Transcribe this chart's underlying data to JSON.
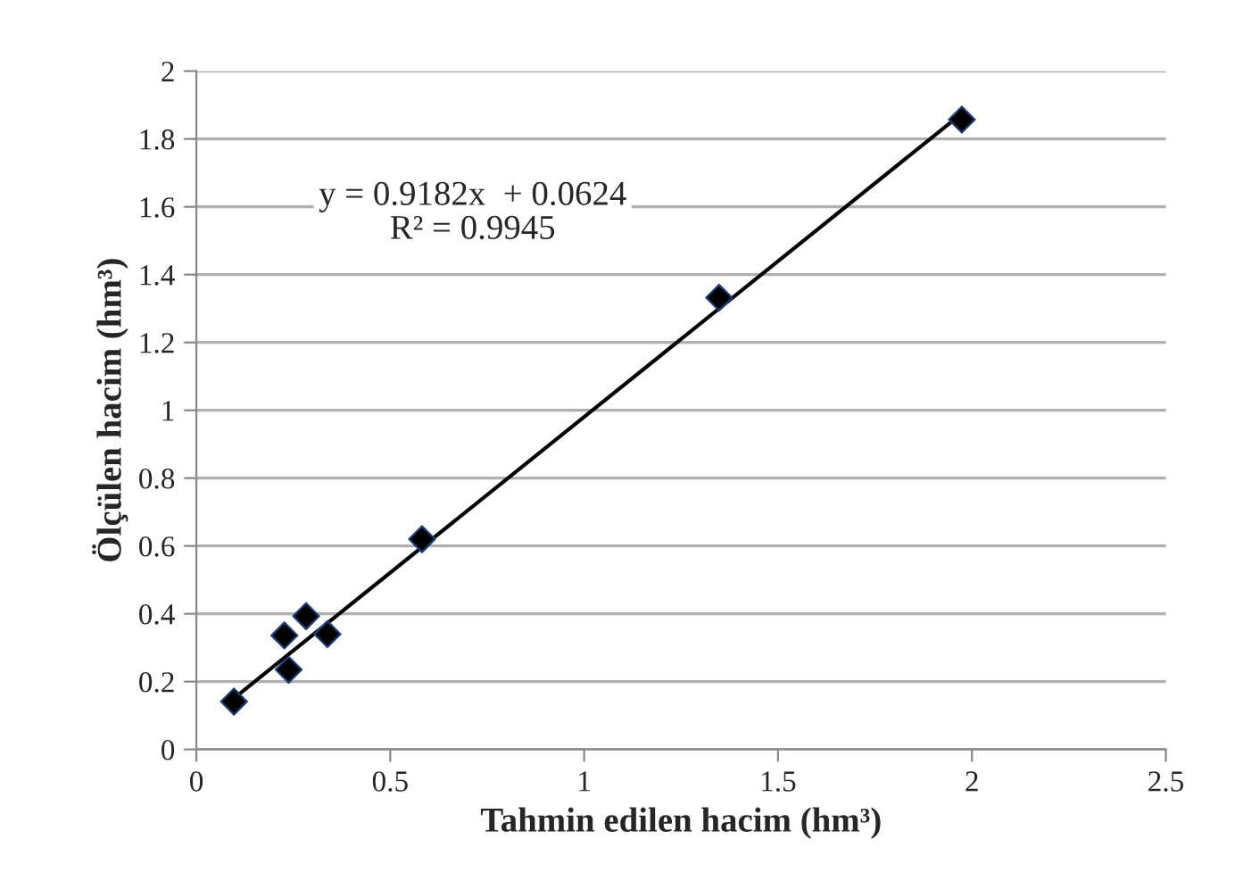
{
  "chart_data": {
    "type": "scatter",
    "xlabel": "Tahmin edilen hacim (hm³)",
    "ylabel": "Ölçülen hacim (hm³)",
    "series": [
      {
        "type": "scatter",
        "color": "#000000",
        "marker": "diamond",
        "x": [
          0.097,
          0.227,
          0.238,
          0.283,
          0.338,
          0.582,
          1.348,
          1.974
        ],
        "values": [
          0.141,
          0.336,
          0.235,
          0.393,
          0.34,
          0.62,
          1.332,
          1.857
        ]
      },
      {
        "type": "line",
        "color": "#000000",
        "marker": "none",
        "line_style": "solid",
        "x": [
          0.097,
          1.974
        ],
        "values": [
          0.151,
          1.875
        ]
      }
    ],
    "annotations": [
      "y = 0.9182x  + 0.0624",
      "R² = 0.9945"
    ],
    "xlim": [
      0,
      2.5
    ],
    "xticks": [
      0,
      0.5,
      1,
      1.5,
      2,
      2.5
    ],
    "ylim": [
      0,
      2
    ],
    "yticks": [
      0,
      0.2,
      0.4,
      0.6,
      0.8,
      1,
      1.2,
      1.4,
      1.6,
      1.8,
      2
    ],
    "grid": "y",
    "legend": false
  }
}
